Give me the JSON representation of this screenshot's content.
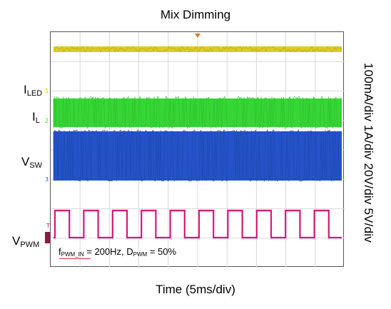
{
  "chart_data": {
    "type": "line",
    "title": "Mix Dimming",
    "xlabel": "Time (5ms/div)",
    "scale_label": "100mA/div 1A/div  20V/div 5V/div",
    "grid": true,
    "x_divisions": 10,
    "y_divisions": 8,
    "series": [
      {
        "key": "iled",
        "label_main": "I",
        "label_sub": "LED",
        "marker": "1",
        "color": "#d6c400",
        "waveform": "constant with small ripple",
        "scale": "100mA/div"
      },
      {
        "key": "il",
        "label_main": "I",
        "label_sub": "L",
        "marker": "2",
        "color": "#35d635",
        "waveform": "high-frequency switching band",
        "scale": "1A/div"
      },
      {
        "key": "vsw",
        "label_main": "V",
        "label_sub": "SW",
        "marker": "3",
        "color": "#2453c8",
        "waveform": "high-frequency switching band",
        "scale": "20V/div"
      },
      {
        "key": "vpwm",
        "label_main": "V",
        "label_sub": "PWM",
        "marker": "T",
        "color": "#d4177a",
        "waveform": "square wave",
        "scale": "5V/div",
        "frequency_hz": 200,
        "duty_cycle_percent": 50,
        "period_ms": 5,
        "periods_shown": 10
      }
    ],
    "annotation": {
      "f_main": "f",
      "f_sub": "PWM_IN",
      "f_value": " = 200Hz, D",
      "d_sub": "PWM",
      "d_value": " = 50%"
    }
  }
}
